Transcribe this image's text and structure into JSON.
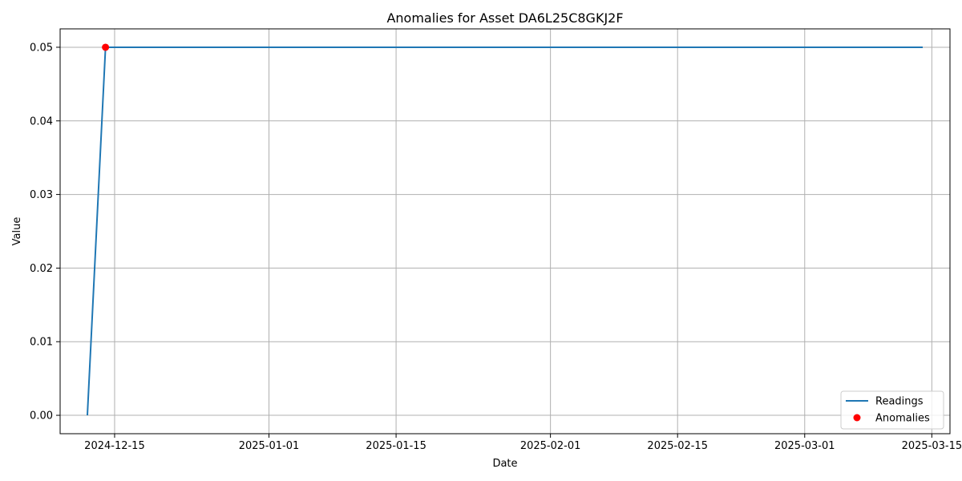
{
  "chart_data": {
    "type": "line",
    "title": "Anomalies for Asset DA6L25C8GKJ2F",
    "xlabel": "Date",
    "ylabel": "Value",
    "x_axis_type": "date",
    "xlim": [
      "2024-12-09",
      "2025-03-17"
    ],
    "ylim": [
      -0.0025,
      0.0525
    ],
    "grid": true,
    "legend_placement": "lower-right",
    "x_ticks": [
      "2024-12-15",
      "2025-01-01",
      "2025-01-15",
      "2025-02-01",
      "2025-02-15",
      "2025-03-01",
      "2025-03-15"
    ],
    "y_ticks": [
      0.0,
      0.01,
      0.02,
      0.03,
      0.04,
      0.05
    ],
    "y_tick_labels": [
      "0.00",
      "0.01",
      "0.02",
      "0.03",
      "0.04",
      "0.05"
    ],
    "series": [
      {
        "name": "Readings",
        "kind": "line",
        "color": "#1f77b4",
        "points": [
          {
            "x": "2024-12-12",
            "y": 0.0
          },
          {
            "x": "2024-12-14",
            "y": 0.05
          },
          {
            "x": "2025-03-14",
            "y": 0.05
          }
        ]
      },
      {
        "name": "Anomalies",
        "kind": "scatter",
        "color": "#ff0000",
        "points": [
          {
            "x": "2024-12-14",
            "y": 0.05
          }
        ]
      }
    ]
  }
}
